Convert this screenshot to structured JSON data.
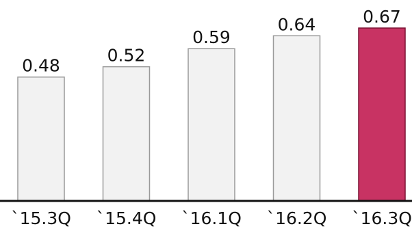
{
  "chart_data": {
    "type": "bar",
    "categories": [
      "`15.3Q",
      "`15.4Q",
      "`16.1Q",
      "`16.2Q",
      "`16.3Q"
    ],
    "values": [
      0.48,
      0.52,
      0.59,
      0.64,
      0.67
    ],
    "value_labels": [
      "0.48",
      "0.52",
      "0.59",
      "0.64",
      "0.67"
    ],
    "title": "",
    "xlabel": "",
    "ylabel": "",
    "ylim": [
      0,
      0.67
    ],
    "grid": false,
    "colors": {
      "default_bar": "#f2f2f2",
      "default_bar_border": "#9a9a9a",
      "highlight_bar": "#c83363",
      "highlight_bar_border": "#7a1233",
      "axis": "#111111"
    },
    "highlight_index": 4
  }
}
